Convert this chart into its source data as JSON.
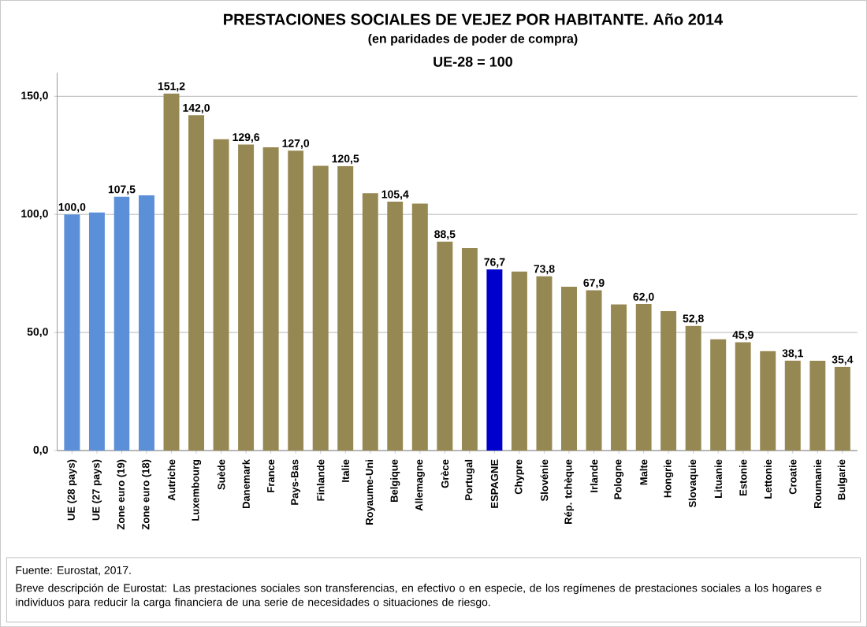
{
  "chart_data": {
    "type": "bar",
    "title": "PRESTACIONES SOCIALES DE VEJEZ POR HABITANTE. Año 2014",
    "subtitle": "(en paridades de poder de compra)",
    "categories": [
      "UE (28 pays)",
      "UE (27 pays)",
      "Zone euro (19)",
      "Zone euro (18)",
      "Autriche",
      "Luxembourg",
      "Suède",
      "Danemark",
      "France",
      "Pays-Bas",
      "Finlande",
      "Italie",
      "Royaume-Uni",
      "Belgique",
      "Allemagne",
      "Grèce",
      "Portugal",
      "ESPAGNE",
      "Chypre",
      "Slovénie",
      "Rép. tchèque",
      "Irlande",
      "Pologne",
      "Malte",
      "Hongrie",
      "Slovaquie",
      "Lituanie",
      "Estonie",
      "Lettonie",
      "Croatie",
      "Roumanie",
      "Bulgarie"
    ],
    "values": [
      100.0,
      100.8,
      107.5,
      108.1,
      151.2,
      142.0,
      131.9,
      129.6,
      128.4,
      127.0,
      120.6,
      120.5,
      109.0,
      105.4,
      104.6,
      88.5,
      85.7,
      76.7,
      75.8,
      73.8,
      69.4,
      67.9,
      61.9,
      62.0,
      59.0,
      52.8,
      47.1,
      45.9,
      42.1,
      38.1,
      38.0,
      35.4
    ],
    "value_labels": [
      "100,0",
      null,
      "107,5",
      null,
      "151,2",
      "142,0",
      null,
      "129,6",
      null,
      "127,0",
      null,
      "120,5",
      null,
      "105,4",
      null,
      "88,5",
      null,
      "76,7",
      null,
      "73,8",
      null,
      "67,9",
      null,
      "62,0",
      null,
      "52,8",
      null,
      "45,9",
      null,
      "38,1",
      null,
      "35,4"
    ],
    "colors": [
      "#5b8fd8",
      "#5b8fd8",
      "#5b8fd8",
      "#5b8fd8",
      "#968852",
      "#968852",
      "#968852",
      "#968852",
      "#968852",
      "#968852",
      "#968852",
      "#968852",
      "#968852",
      "#968852",
      "#968852",
      "#968852",
      "#968852",
      "#0000cc",
      "#968852",
      "#968852",
      "#968852",
      "#968852",
      "#968852",
      "#968852",
      "#968852",
      "#968852",
      "#968852",
      "#968852",
      "#968852",
      "#968852",
      "#968852",
      "#968852"
    ],
    "ylim": [
      0,
      160
    ],
    "yticks": [
      {
        "value": 0,
        "label": "0,0"
      },
      {
        "value": 50,
        "label": "50,0"
      },
      {
        "value": 100,
        "label": "100,0"
      },
      {
        "value": 150,
        "label": "150,0"
      }
    ],
    "grid": "y",
    "annotations": [
      "UE-28 = 100",
      "Fuente: Eurostat, 2017.",
      "Breve descripción de Eurostat: Las prestaciones sociales son transferencias, en efectivo o en especie, de los regímenes de prestaciones sociales a los hogares e individuos para reducir la carga financiera de una serie de necesidades o situaciones de riesgo."
    ]
  }
}
